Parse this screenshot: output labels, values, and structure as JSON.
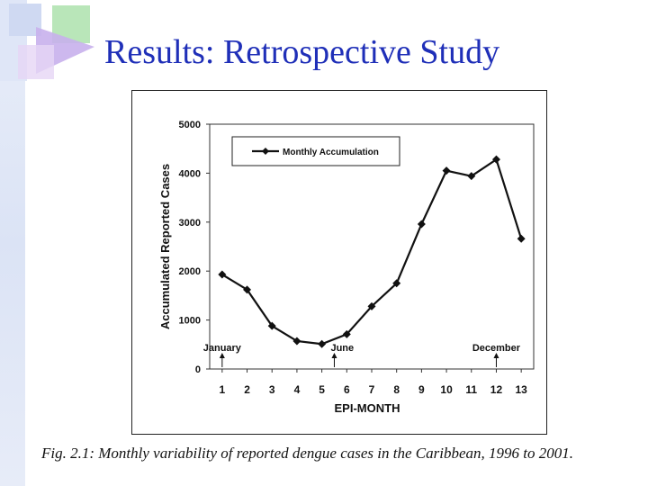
{
  "slide": {
    "title": "Results: Retrospective Study",
    "caption": "Fig. 2.1: Monthly variability of reported dengue cases in the Caribbean, 1996 to 2001."
  },
  "colors": {
    "title": "#1f2fb8",
    "line": "#111111",
    "strip": "#dbe3f5"
  },
  "chart_data": {
    "type": "line",
    "title": "",
    "xlabel": "EPI-MONTH",
    "ylabel": "Accumulated Reported Cases",
    "x": [
      1,
      2,
      3,
      4,
      5,
      6,
      7,
      8,
      9,
      10,
      11,
      12,
      13
    ],
    "series": [
      {
        "name": "Monthly Accumulation",
        "values": [
          1930,
          1620,
          880,
          570,
          510,
          710,
          1280,
          1750,
          2960,
          4050,
          3940,
          4280,
          2660
        ]
      }
    ],
    "yticks": [
      0,
      1000,
      2000,
      3000,
      4000,
      5000
    ],
    "ylim": [
      0,
      5000
    ],
    "xlim": [
      0.5,
      13.5
    ],
    "grid": false,
    "legend_position": "top-left",
    "annotations": [
      {
        "text": "January",
        "x": 1
      },
      {
        "text": "June",
        "x": 5.5
      },
      {
        "text": "December",
        "x": 12
      }
    ]
  }
}
